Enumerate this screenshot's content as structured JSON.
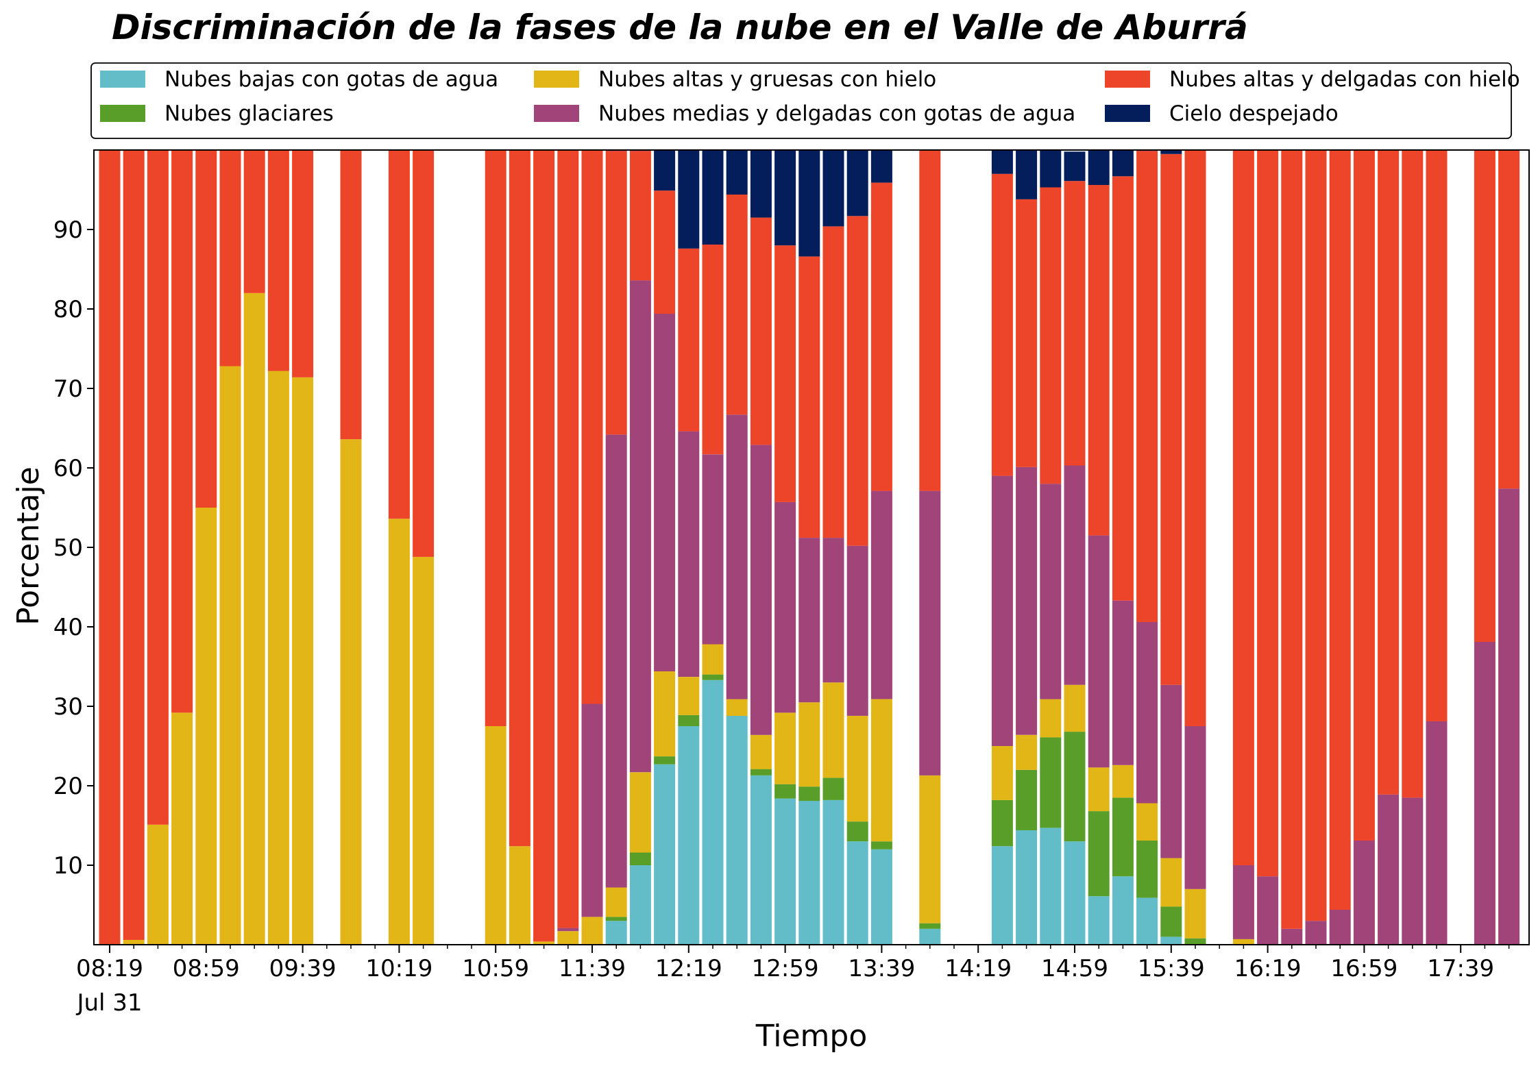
{
  "chart_data": {
    "type": "bar",
    "stacked": true,
    "title": "Discriminación de la fases de la nube en el Valle de Aburrá",
    "xlabel": "Tiempo",
    "ylabel": "Porcentaje",
    "ylim": [
      0,
      100
    ],
    "yticks": [
      10,
      20,
      30,
      40,
      50,
      60,
      70,
      80,
      90
    ],
    "xticklabels": [
      "08:19",
      "08:59",
      "09:39",
      "10:19",
      "10:59",
      "11:39",
      "12:19",
      "12:59",
      "13:39",
      "14:19",
      "14:59",
      "15:39",
      "16:19",
      "16:59",
      "17:39"
    ],
    "xdate_label": "Jul 31",
    "grid": false,
    "legend_position": "top",
    "x": [
      "08:19",
      "08:29",
      "08:39",
      "08:49",
      "08:59",
      "09:09",
      "09:19",
      "09:29",
      "09:39",
      "09:49",
      "09:59",
      "10:09",
      "10:19",
      "10:29",
      "10:39",
      "10:49",
      "10:59",
      "11:09",
      "11:19",
      "11:29",
      "11:39",
      "11:49",
      "11:59",
      "12:09",
      "12:19",
      "12:29",
      "12:39",
      "12:49",
      "12:59",
      "13:09",
      "13:19",
      "13:29",
      "13:39",
      "13:49",
      "13:59",
      "14:09",
      "14:19",
      "14:29",
      "14:39",
      "14:49",
      "14:59",
      "15:09",
      "15:19",
      "15:29",
      "15:39",
      "15:49",
      "15:59",
      "16:09",
      "16:19",
      "16:29",
      "16:39",
      "16:49",
      "16:59",
      "17:09",
      "17:19",
      "17:29",
      "17:39",
      "17:49",
      "17:59"
    ],
    "series": [
      {
        "name": "Nubes bajas con gotas de agua",
        "color": "#63bdc9",
        "values": [
          0,
          0,
          0,
          0,
          0,
          0,
          0,
          0,
          0,
          null,
          0,
          null,
          0,
          0,
          null,
          null,
          0,
          0,
          0,
          0,
          0,
          3,
          10,
          22.7,
          27.5,
          33.3,
          28.8,
          21.3,
          18.4,
          18.1,
          18.2,
          13.0,
          12.0,
          null,
          2.0,
          null,
          null,
          12.4,
          14.4,
          14.7,
          13.0,
          6.1,
          8.6,
          5.9,
          1.0,
          0,
          null,
          0,
          0,
          0,
          0,
          0,
          0,
          0,
          0,
          0,
          null,
          0,
          0
        ]
      },
      {
        "name": "Nubes glaciares",
        "color": "#5a9e2a",
        "values": [
          0,
          0,
          0,
          0,
          0,
          0,
          0,
          0,
          0,
          null,
          0,
          null,
          0,
          0,
          null,
          null,
          0,
          0,
          0,
          0,
          0,
          0.5,
          1.6,
          1.0,
          1.4,
          0.7,
          0,
          0.8,
          1.8,
          1.8,
          2.8,
          2.5,
          1.0,
          null,
          0.7,
          null,
          null,
          5.8,
          7.6,
          11.4,
          13.8,
          10.7,
          9.9,
          7.2,
          3.8,
          0.8,
          null,
          0,
          0,
          0,
          0,
          0,
          0,
          0,
          0,
          0,
          null,
          0,
          0
        ]
      },
      {
        "name": "Nubes altas y gruesas con hielo",
        "color": "#e3b617",
        "values": [
          0,
          0.6,
          15.1,
          29.2,
          55.0,
          72.8,
          82.0,
          72.2,
          71.4,
          null,
          63.6,
          null,
          53.6,
          48.8,
          null,
          null,
          27.5,
          12.4,
          0.4,
          1.7,
          3.5,
          3.7,
          10.1,
          10.7,
          4.8,
          3.8,
          2.1,
          4.3,
          9.0,
          10.6,
          12.0,
          13.3,
          17.9,
          null,
          18.6,
          null,
          null,
          6.8,
          4.4,
          4.8,
          5.9,
          5.5,
          4.1,
          4.7,
          6.1,
          6.2,
          null,
          0.7,
          0,
          0,
          0,
          0,
          0,
          0,
          0,
          0,
          null,
          0,
          0
        ]
      },
      {
        "name": "Nubes medias y delgadas con gotas de agua",
        "color": "#a04479",
        "values": [
          0,
          0,
          0,
          0,
          0,
          0,
          0,
          0,
          0,
          null,
          0,
          null,
          0,
          0,
          null,
          null,
          0,
          0,
          0,
          0.4,
          26.8,
          57.0,
          61.9,
          45.0,
          30.9,
          23.9,
          35.8,
          36.5,
          26.5,
          20.7,
          18.2,
          21.4,
          26.2,
          null,
          35.8,
          null,
          null,
          34.0,
          33.7,
          27.1,
          27.6,
          29.2,
          20.7,
          22.8,
          21.8,
          20.5,
          null,
          9.3,
          8.6,
          2.0,
          3.0,
          4.4,
          13.1,
          18.9,
          18.5,
          28.1,
          null,
          38.1,
          57.4
        ]
      },
      {
        "name": "Nubes altas y delgadas con hielo",
        "color": "#ec452a",
        "values": [
          100,
          99.4,
          84.9,
          70.8,
          45.0,
          27.2,
          18.0,
          27.8,
          28.6,
          null,
          36.4,
          null,
          46.4,
          51.2,
          null,
          null,
          72.5,
          87.6,
          99.6,
          97.9,
          69.7,
          35.7,
          16.3,
          15.5,
          23.0,
          26.4,
          27.7,
          28.6,
          32.3,
          35.4,
          39.2,
          41.5,
          38.8,
          null,
          42.9,
          null,
          null,
          38.0,
          33.7,
          37.3,
          35.8,
          44.1,
          53.4,
          59.3,
          66.8,
          72.5,
          null,
          90.0,
          91.4,
          98.0,
          97.0,
          95.6,
          86.9,
          81.1,
          81.5,
          71.9,
          null,
          61.9,
          42.6
        ]
      },
      {
        "name": "Cielo despejado",
        "color": "#041e5c",
        "values": [
          0,
          0,
          0,
          0,
          0,
          0,
          0,
          0,
          0,
          null,
          0,
          null,
          0,
          0,
          null,
          null,
          0,
          0,
          0,
          0,
          0,
          0.1,
          0.1,
          5.1,
          12.4,
          11.9,
          5.6,
          8.5,
          12.0,
          13.4,
          9.6,
          8.3,
          4.1,
          null,
          0,
          null,
          null,
          3.0,
          6.2,
          4.7,
          3.7,
          4.4,
          3.3,
          0.1,
          0.5,
          0,
          null,
          0,
          0,
          0,
          0,
          0,
          0,
          0,
          0,
          0,
          null,
          0,
          0
        ]
      }
    ]
  }
}
